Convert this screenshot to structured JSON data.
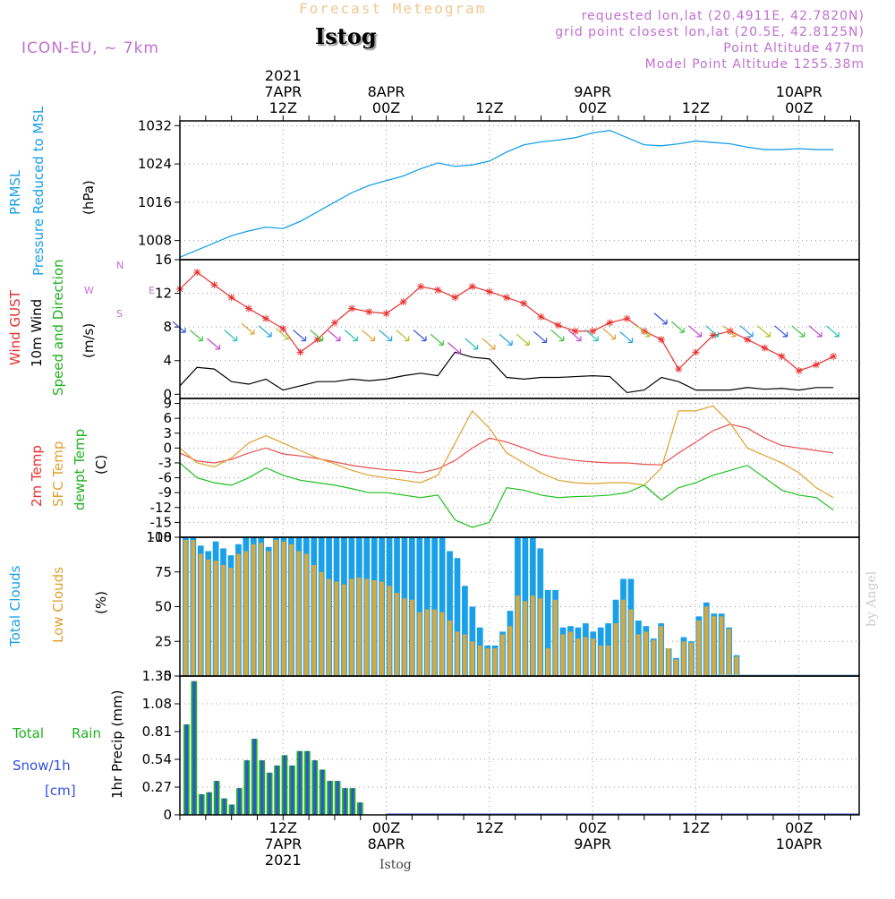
{
  "header": {
    "forecast_title": "Forecast Meteogram",
    "location": "Istog",
    "model": "ICON-EU, ~ 7km",
    "requested": "requested lon,lat (20.4911E, 42.7820N)",
    "grid_point": "grid point closest lon,lat (20.5E, 42.8125N)",
    "point_altitude": "Point Altitude 477m",
    "model_altitude": "Model Point Altitude 1255.38m",
    "footer_location": "Istog",
    "watermark": "by Angel"
  },
  "colors": {
    "pressure": "#1aa0e8",
    "gust": "#e83030",
    "wind": "#000000",
    "temp": "#e85050",
    "sfc_temp": "#e0a030",
    "dewpt": "#20c020",
    "total_clouds": "#1aa0e8",
    "low_clouds": "#d8a840",
    "rain": "#20b020",
    "snow": "#3050e0"
  },
  "time_axis": {
    "top_labels": [
      {
        "t": 12,
        "lines": [
          "2021",
          "7APR",
          "12Z"
        ]
      },
      {
        "t": 24,
        "lines": [
          "8APR",
          "00Z"
        ]
      },
      {
        "t": 36,
        "lines": [
          "12Z"
        ]
      },
      {
        "t": 48,
        "lines": [
          "9APR",
          "00Z"
        ]
      },
      {
        "t": 60,
        "lines": [
          "12Z"
        ]
      },
      {
        "t": 72,
        "lines": [
          "10APR",
          "00Z"
        ]
      }
    ],
    "bottom_labels": [
      {
        "t": 12,
        "lines": [
          "12Z",
          "7APR",
          "2021"
        ]
      },
      {
        "t": 24,
        "lines": [
          "00Z",
          "8APR"
        ]
      },
      {
        "t": 36,
        "lines": [
          "12Z"
        ]
      },
      {
        "t": 48,
        "lines": [
          "00Z",
          "9APR"
        ]
      },
      {
        "t": 60,
        "lines": [
          "12Z"
        ]
      },
      {
        "t": 72,
        "lines": [
          "00Z",
          "10APR"
        ]
      }
    ]
  },
  "panels": {
    "pressure": {
      "label1": "PRMSL",
      "label2": "Pressure Reduced to MSL",
      "unit": "(hPa)"
    },
    "wind": {
      "label1": "Wind GUST",
      "label2": "10m Wind",
      "label3": "Speed and Direction",
      "unit": "(m/s)",
      "compass": [
        "N",
        "S",
        "W",
        "E"
      ]
    },
    "temp": {
      "label1": "2m Temp",
      "label2": "SFC Temp",
      "label3": "dewpt Temp",
      "unit": "(C)"
    },
    "clouds": {
      "label1": "Total Clouds",
      "label2": "Low Clouds",
      "unit": "(%)"
    },
    "precip": {
      "label1": "Total",
      "label2": "Rain",
      "label3": "Snow/1h",
      "label4": "[cm]",
      "unit": "1hr Precip (mm)"
    }
  },
  "chart_data": [
    {
      "type": "line",
      "title": "PRMSL Pressure Reduced to MSL",
      "ylabel": "(hPa)",
      "ylim": [
        1004,
        1033
      ],
      "yticks": [
        1008,
        1016,
        1024,
        1032
      ],
      "x_unit": "hours from 7APR 00Z",
      "x": [
        0,
        2,
        4,
        6,
        8,
        10,
        12,
        14,
        16,
        18,
        20,
        22,
        24,
        26,
        28,
        30,
        32,
        34,
        36,
        38,
        40,
        42,
        44,
        46,
        48,
        50,
        52,
        54,
        56,
        58,
        60,
        62,
        64,
        66,
        68,
        70,
        72,
        74,
        76
      ],
      "series": [
        {
          "name": "PRMSL",
          "values": [
            1004.5,
            1006,
            1007.5,
            1009,
            1010,
            1010.8,
            1010.5,
            1012,
            1014,
            1016,
            1018,
            1019.5,
            1020.5,
            1021.5,
            1023,
            1024.2,
            1023.5,
            1023.8,
            1024.6,
            1026.5,
            1028,
            1028.6,
            1029,
            1029.5,
            1030.5,
            1031,
            1029.5,
            1028,
            1027.8,
            1028.2,
            1028.8,
            1028.5,
            1028.2,
            1027.5,
            1027,
            1027,
            1027.2,
            1027,
            1027
          ]
        }
      ],
      "grid": true
    },
    {
      "type": "line",
      "title": "Wind GUST / 10m Wind Speed and Direction",
      "ylabel": "(m/s)",
      "ylim": [
        -0.5,
        16
      ],
      "yticks": [
        0,
        4,
        8,
        12,
        16
      ],
      "x_unit": "hours from 7APR 00Z",
      "x": [
        0,
        2,
        4,
        6,
        8,
        10,
        12,
        14,
        16,
        18,
        20,
        22,
        24,
        26,
        28,
        30,
        32,
        34,
        36,
        38,
        40,
        42,
        44,
        46,
        48,
        50,
        52,
        54,
        56,
        58,
        60,
        62,
        64,
        66,
        68,
        70,
        72,
        74,
        76
      ],
      "series": [
        {
          "name": "Wind GUST",
          "values": [
            12.5,
            14.5,
            13,
            11.5,
            10.2,
            9,
            7.8,
            5,
            6.5,
            8.5,
            10.2,
            9.8,
            9.6,
            11,
            12.8,
            12.4,
            11.5,
            12.8,
            12.2,
            11.5,
            10.8,
            9.2,
            8.2,
            7.5,
            7.5,
            8.5,
            9,
            7.5,
            6.5,
            3,
            5,
            7,
            7.5,
            6.5,
            5.5,
            4.5,
            2.8,
            3.5,
            4.5
          ]
        },
        {
          "name": "10m Wind",
          "values": [
            1,
            3.2,
            3,
            1.5,
            1.2,
            1.8,
            0.5,
            1,
            1.5,
            1.5,
            1.8,
            1.6,
            1.8,
            2.2,
            2.5,
            2.2,
            5,
            4.4,
            4.2,
            2,
            1.8,
            2,
            2,
            2.1,
            2.2,
            2.1,
            0.2,
            0.5,
            2,
            1.5,
            0.5,
            0.5,
            0.5,
            0.8,
            0.6,
            0.7,
            0.5,
            0.8,
            0.8
          ]
        },
        {
          "name": "Wind direction (arrows)",
          "values": [
            8,
            7,
            6,
            7,
            7.8,
            7.5,
            7.2,
            7,
            7,
            7,
            7,
            7,
            7,
            7,
            7,
            6.5,
            5.5,
            6,
            6,
            6.5,
            6.5,
            6.8,
            7,
            7,
            7,
            7.2,
            6.8,
            7.5,
            9,
            8,
            7.5,
            7.5,
            7.5,
            7.5,
            7.5,
            7.5,
            7.5,
            7.5,
            7.5
          ]
        }
      ],
      "grid": true
    },
    {
      "type": "line",
      "title": "2m Temp / SFC Temp / dewpt Temp",
      "ylabel": "(C)",
      "ylim": [
        -18,
        10
      ],
      "yticks": [
        -18,
        -15,
        -12,
        -9,
        -6,
        -3,
        0,
        3,
        6,
        9
      ],
      "x_unit": "hours from 7APR 00Z",
      "x": [
        0,
        2,
        4,
        6,
        8,
        10,
        12,
        14,
        16,
        18,
        20,
        22,
        24,
        26,
        28,
        30,
        32,
        34,
        36,
        38,
        40,
        42,
        44,
        46,
        48,
        50,
        52,
        54,
        56,
        58,
        60,
        62,
        64,
        66,
        68,
        70,
        72,
        74,
        76
      ],
      "series": [
        {
          "name": "2m Temp",
          "values": [
            -1,
            -2.6,
            -3,
            -2.3,
            -1,
            0,
            -1.2,
            -1.6,
            -2.1,
            -2.8,
            -3.5,
            -4,
            -4.4,
            -4.6,
            -5,
            -4.2,
            -2.5,
            0,
            2,
            1.2,
            0,
            -1.3,
            -2,
            -2.5,
            -2.8,
            -3,
            -3,
            -3.3,
            -3.4,
            -1,
            1.2,
            3.5,
            4.8,
            4,
            2,
            0.5,
            0,
            -0.5,
            -1
          ]
        },
        {
          "name": "SFC Temp",
          "values": [
            0,
            -3,
            -3.8,
            -2,
            1,
            2.5,
            1,
            -0.5,
            -2,
            -3.2,
            -4.5,
            -5.5,
            -6,
            -6.5,
            -7,
            -5.5,
            1,
            7.5,
            4,
            -1,
            -3,
            -5,
            -6.5,
            -7,
            -7.2,
            -7,
            -7,
            -7.5,
            -4,
            7.5,
            7.5,
            8.5,
            5,
            0,
            -1.5,
            -3,
            -5,
            -8,
            -10
          ]
        },
        {
          "name": "dewpt Temp",
          "values": [
            -3,
            -6,
            -7,
            -7.5,
            -6,
            -4,
            -5.5,
            -6.5,
            -7,
            -7.5,
            -8.2,
            -9,
            -9,
            -9.5,
            -10,
            -9.5,
            -14.5,
            -16,
            -15,
            -8,
            -8.5,
            -9.5,
            -10,
            -9.8,
            -9.7,
            -9.5,
            -9,
            -7.5,
            -10.5,
            -8,
            -7,
            -5.5,
            -4.5,
            -3.5,
            -6,
            -8.5,
            -9.5,
            -10,
            -12.5
          ]
        }
      ],
      "grid": true
    },
    {
      "type": "bar",
      "title": "Total Clouds / Low Clouds",
      "ylabel": "(%)",
      "ylim": [
        0,
        100
      ],
      "yticks": [
        0,
        25,
        50,
        75,
        100
      ],
      "x_unit": "hours from 7APR 00Z",
      "series": [
        {
          "name": "Total Clouds",
          "values": [
            100,
            100,
            94,
            90,
            97,
            92,
            87,
            95,
            100,
            100,
            100,
            93,
            100,
            100,
            100,
            100,
            100,
            100,
            100,
            100,
            100,
            100,
            100,
            100,
            100,
            100,
            100,
            100,
            100,
            100,
            100,
            100,
            100,
            100,
            100,
            90,
            85,
            65,
            50,
            35,
            22,
            22,
            32,
            47,
            100,
            100,
            100,
            92,
            62,
            62,
            35,
            36,
            35,
            38,
            32,
            35,
            38,
            55,
            70,
            70,
            40,
            36,
            27,
            38,
            20,
            13,
            28,
            25,
            43,
            53,
            45,
            45,
            35,
            15,
            0,
            0,
            0,
            0,
            0,
            0,
            0,
            0,
            0,
            0,
            0,
            0,
            0,
            0,
            0,
            0
          ]
        },
        {
          "name": "Low Clouds",
          "values": [
            98,
            98,
            88,
            84,
            83,
            80,
            78,
            88,
            90,
            95,
            96,
            90,
            98,
            97,
            95,
            90,
            88,
            80,
            75,
            70,
            68,
            66,
            70,
            71,
            70,
            69,
            68,
            65,
            60,
            56,
            55,
            46,
            48,
            48,
            46,
            40,
            32,
            30,
            25,
            22,
            20,
            20,
            30,
            36,
            58,
            54,
            58,
            56,
            20,
            55,
            30,
            32,
            27,
            28,
            27,
            22,
            22,
            38,
            55,
            48,
            30,
            32,
            26,
            36,
            20,
            12,
            25,
            24,
            40,
            50,
            43,
            43,
            34,
            14,
            0,
            0,
            0,
            0,
            0,
            0,
            0,
            0,
            0,
            0,
            0,
            0,
            0,
            0,
            0,
            0
          ]
        }
      ],
      "grid": true
    },
    {
      "type": "bar",
      "title": "Total Rain / Snow/1h",
      "ylabel": "1hr Precip (mm)",
      "ylim": [
        0,
        1.35
      ],
      "yticks": [
        0,
        0.27,
        0.54,
        0.81,
        1.08,
        1.35
      ],
      "x_unit": "hours from 7APR 00Z",
      "series": [
        {
          "name": "Total Rain",
          "values": [
            0.88,
            1.3,
            0.2,
            0.22,
            0.33,
            0.16,
            0.1,
            0.26,
            0.53,
            0.74,
            0.53,
            0.41,
            0.48,
            0.58,
            0.48,
            0.62,
            0.62,
            0.53,
            0.44,
            0.33,
            0.33,
            0.26,
            0.26,
            0.12,
            0,
            0,
            0,
            0,
            0,
            0,
            0,
            0,
            0,
            0,
            0,
            0,
            0,
            0,
            0,
            0
          ]
        },
        {
          "name": "Snow/1h",
          "values": [
            0.88,
            1.3,
            0.2,
            0.22,
            0.33,
            0.16,
            0.1,
            0.26,
            0.53,
            0.74,
            0.53,
            0.41,
            0.48,
            0.58,
            0.48,
            0.62,
            0.62,
            0.53,
            0.44,
            0.33,
            0.33,
            0.26,
            0.26,
            0.12,
            0,
            0,
            0,
            0,
            0,
            0,
            0,
            0,
            0,
            0,
            0,
            0,
            0,
            0,
            0,
            0
          ]
        }
      ],
      "grid": true
    }
  ]
}
